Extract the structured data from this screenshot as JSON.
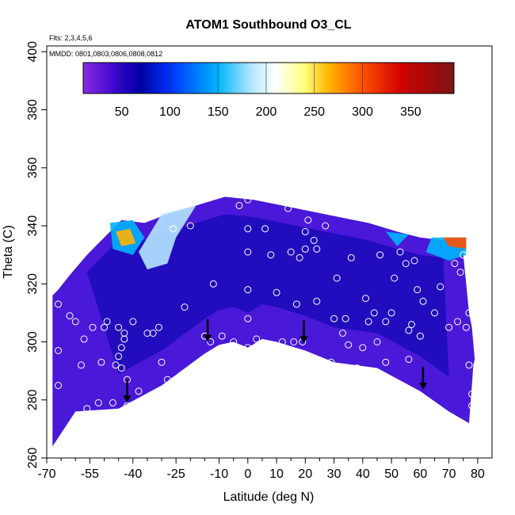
{
  "chart_data": {
    "type": "heatmap",
    "title": "ATOM1 Southbound O3_CL",
    "subtitle_flights": "Flts: 2,3,4,5,6",
    "subtitle_dates": "MMDD: 0801,0803,0806,0808,0812",
    "xlabel": "Latitude (deg N)",
    "ylabel": "Theta (C)",
    "xlim": [
      -70,
      85
    ],
    "ylim": [
      260,
      402
    ],
    "x_ticks": [
      -70,
      -55,
      -40,
      -25,
      -10,
      0,
      10,
      20,
      30,
      40,
      50,
      60,
      70,
      80
    ],
    "x_minor_ticks": [
      -65,
      -60,
      -50,
      -45,
      -35,
      -30,
      -20,
      -15,
      -5,
      5,
      15,
      25,
      35,
      45,
      55,
      65,
      75
    ],
    "y_ticks": [
      260,
      280,
      300,
      320,
      340,
      360,
      380,
      400
    ],
    "colorbar": {
      "range": [
        10,
        395
      ],
      "ticks": [
        50,
        100,
        150,
        200,
        250,
        300,
        350
      ],
      "stops": [
        {
          "v": 10,
          "c": "#8a2be2"
        },
        {
          "v": 50,
          "c": "#2a00c8"
        },
        {
          "v": 70,
          "c": "#0000a0"
        },
        {
          "v": 100,
          "c": "#0032ff"
        },
        {
          "v": 150,
          "c": "#00b4ff"
        },
        {
          "v": 185,
          "c": "#b4e6ff"
        },
        {
          "v": 210,
          "c": "#ffffff"
        },
        {
          "v": 240,
          "c": "#ffff78"
        },
        {
          "v": 265,
          "c": "#ffb400"
        },
        {
          "v": 300,
          "c": "#ff5000"
        },
        {
          "v": 340,
          "c": "#d20000"
        },
        {
          "v": 395,
          "c": "#7a1414"
        }
      ]
    },
    "lower_boundary": [
      [
        -68,
        264
      ],
      [
        -60,
        276
      ],
      [
        -45,
        277
      ],
      [
        -30,
        285
      ],
      [
        -15,
        296
      ],
      [
        -10,
        299
      ],
      [
        -5,
        300
      ],
      [
        0,
        298
      ],
      [
        5,
        301
      ],
      [
        10,
        300
      ],
      [
        20,
        297
      ],
      [
        30,
        293
      ],
      [
        45,
        291
      ],
      [
        60,
        283
      ],
      [
        70,
        276
      ],
      [
        77,
        272
      ],
      [
        78,
        285
      ],
      [
        78.5,
        292
      ],
      [
        79,
        294
      ]
    ],
    "upper_boundary": [
      [
        79,
        294
      ],
      [
        78,
        305
      ],
      [
        77,
        310
      ],
      [
        76,
        320
      ],
      [
        75,
        330
      ],
      [
        76,
        336
      ],
      [
        68,
        335
      ],
      [
        60,
        336
      ],
      [
        52,
        338
      ],
      [
        42,
        341
      ],
      [
        32,
        343
      ],
      [
        22,
        345
      ],
      [
        12,
        347
      ],
      [
        2,
        349
      ],
      [
        -8,
        350
      ],
      [
        -18,
        347
      ],
      [
        -28,
        344
      ],
      [
        -36,
        341
      ],
      [
        -44,
        342
      ],
      [
        -48,
        338
      ],
      [
        -56,
        330
      ],
      [
        -62,
        323
      ],
      [
        -66,
        318
      ],
      [
        -68,
        316
      ]
    ],
    "series": [
      {
        "name": "Dive profile arrows",
        "points": [
          [
            -42,
            282
          ],
          [
            -14,
            303
          ],
          [
            19.5,
            302.5
          ],
          [
            61,
            286.5
          ]
        ]
      },
      {
        "name": "Observation points",
        "points": [
          [
            -66,
            313
          ],
          [
            -66,
            297
          ],
          [
            -66,
            285
          ],
          [
            -65,
            266
          ],
          [
            -62,
            309
          ],
          [
            -60,
            307
          ],
          [
            -58,
            292
          ],
          [
            -57,
            301
          ],
          [
            -56,
            277
          ],
          [
            -54,
            305
          ],
          [
            -52,
            279
          ],
          [
            -51,
            293
          ],
          [
            -50,
            305
          ],
          [
            -49,
            307
          ],
          [
            -47,
            279
          ],
          [
            -46,
            292
          ],
          [
            -45,
            305
          ],
          [
            -45,
            295
          ],
          [
            -44,
            298
          ],
          [
            -44,
            291
          ],
          [
            -43,
            301
          ],
          [
            -43,
            303
          ],
          [
            -42,
            287
          ],
          [
            -42,
            278
          ],
          [
            -40,
            307
          ],
          [
            -38,
            283
          ],
          [
            -35,
            303
          ],
          [
            -33,
            303
          ],
          [
            -31,
            305
          ],
          [
            -30,
            293
          ],
          [
            -28,
            287
          ],
          [
            -26,
            339
          ],
          [
            -22,
            312
          ],
          [
            -20,
            340
          ],
          [
            -15,
            302
          ],
          [
            -13,
            300
          ],
          [
            -12,
            320
          ],
          [
            -9,
            302
          ],
          [
            -5,
            300
          ],
          [
            -3,
            347
          ],
          [
            0,
            298
          ],
          [
            0,
            308
          ],
          [
            0,
            318
          ],
          [
            0,
            331
          ],
          [
            0,
            339
          ],
          [
            0,
            349
          ],
          [
            3,
            301
          ],
          [
            6,
            339
          ],
          [
            8,
            330
          ],
          [
            10,
            317
          ],
          [
            12,
            300
          ],
          [
            14,
            346
          ],
          [
            15,
            331
          ],
          [
            16,
            300
          ],
          [
            17,
            313
          ],
          [
            18,
            329
          ],
          [
            19,
            300
          ],
          [
            20,
            338
          ],
          [
            20,
            332
          ],
          [
            21,
            342
          ],
          [
            23,
            335
          ],
          [
            24,
            332
          ],
          [
            24,
            314
          ],
          [
            27,
            340
          ],
          [
            29,
            293
          ],
          [
            30,
            308
          ],
          [
            31,
            322
          ],
          [
            33,
            303
          ],
          [
            34,
            308
          ],
          [
            35,
            299
          ],
          [
            36,
            329
          ],
          [
            38,
            291
          ],
          [
            40,
            298
          ],
          [
            41,
            315
          ],
          [
            42,
            307
          ],
          [
            44,
            310
          ],
          [
            45,
            300
          ],
          [
            46,
            330
          ],
          [
            48,
            293
          ],
          [
            48,
            307
          ],
          [
            50,
            310
          ],
          [
            51,
            322
          ],
          [
            53,
            331
          ],
          [
            55,
            327
          ],
          [
            56,
            294
          ],
          [
            56,
            304
          ],
          [
            57,
            306
          ],
          [
            58,
            328
          ],
          [
            59,
            318
          ],
          [
            60,
            302
          ],
          [
            61,
            340
          ],
          [
            61,
            314
          ],
          [
            65,
            310
          ],
          [
            67,
            319
          ],
          [
            70,
            305
          ],
          [
            72,
            327
          ],
          [
            73,
            307
          ],
          [
            74,
            324
          ],
          [
            75,
            330
          ],
          [
            76,
            305
          ],
          [
            77,
            310
          ],
          [
            77,
            292
          ],
          [
            78,
            278
          ],
          [
            78,
            282
          ]
        ]
      }
    ]
  }
}
